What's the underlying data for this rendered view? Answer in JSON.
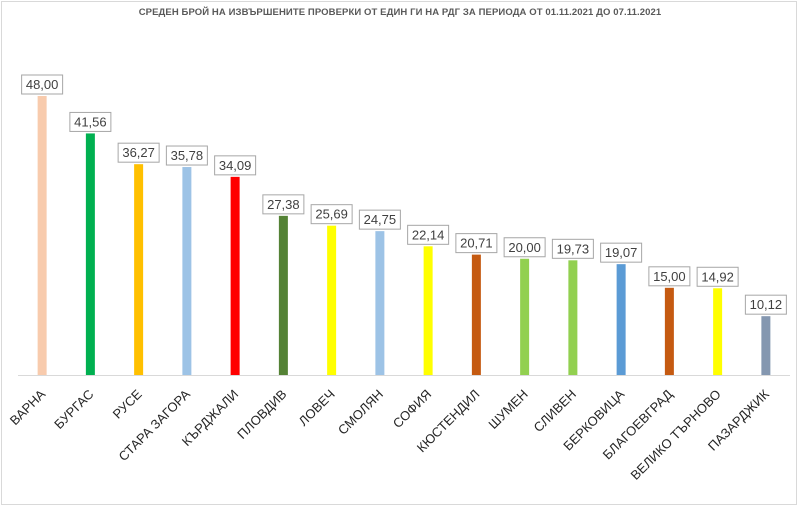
{
  "chart_data": {
    "type": "bar",
    "title": "СРЕДЕН БРОЙ НА ИЗВЪРШЕНИТЕ ПРОВЕРКИ ОТ ЕДИН ГИ НА РДГ ЗА ПЕРИОДА ОТ 01.11.2021 ДО 07.11.2021",
    "categories": [
      "ВАРНА",
      "БУРГАС",
      "РУСЕ",
      "СТАРА ЗАГОРА",
      "КЪРДЖАЛИ",
      "ПЛОВДИВ",
      "ЛОВЕЧ",
      "СМОЛЯН",
      "СОФИЯ",
      "КЮСТЕНДИЛ",
      "ШУМЕН",
      "СЛИВЕН",
      "БЕРКОВИЦА",
      "БЛАГОЕВГРАД",
      "ВЕЛИКО ТЪРНОВО",
      "ПАЗАРДЖИК"
    ],
    "values": [
      48.0,
      41.56,
      36.27,
      35.78,
      34.09,
      27.38,
      25.69,
      24.75,
      22.14,
      20.71,
      20.0,
      19.73,
      19.07,
      15.0,
      14.92,
      10.12
    ],
    "data_labels": [
      "48,00",
      "41,56",
      "36,27",
      "35,78",
      "34,09",
      "27,38",
      "25,69",
      "24,75",
      "22,14",
      "20,71",
      "20,00",
      "19,73",
      "19,07",
      "15,00",
      "14,92",
      "10,12"
    ],
    "colors": [
      "#f8cbad",
      "#00b050",
      "#ffc000",
      "#9dc3e6",
      "#ff0000",
      "#548235",
      "#ffff00",
      "#9dc3e6",
      "#ffff00",
      "#c55a11",
      "#92d050",
      "#92d050",
      "#5b9bd5",
      "#c55a11",
      "#ffff00",
      "#8497b0"
    ],
    "xlabel": "",
    "ylabel": "",
    "ylim": [
      0,
      48
    ],
    "grid": false,
    "legend": "none"
  }
}
